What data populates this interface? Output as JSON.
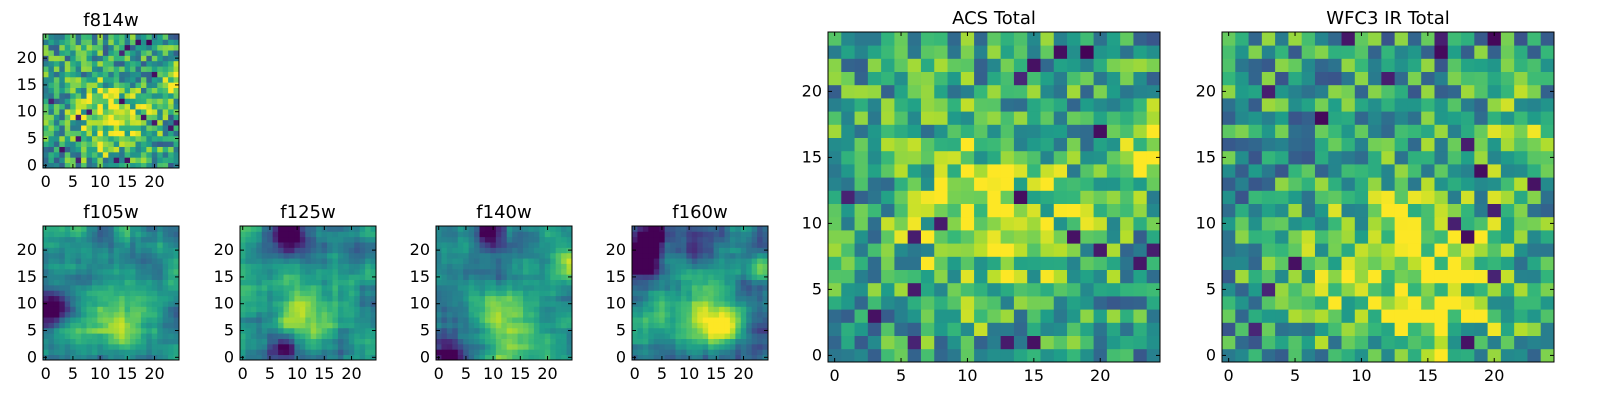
{
  "chart_data": [
    {
      "type": "heatmap",
      "title": "f814w",
      "grid_size": 25,
      "xticks": [
        0,
        5,
        10,
        15,
        20
      ],
      "yticks": [
        0,
        5,
        10,
        15,
        20
      ],
      "xlim": [
        0,
        24
      ],
      "ylim": [
        0,
        24
      ],
      "pattern": "noisy",
      "hotspots": [
        {
          "x": 12,
          "y": 9,
          "amp": 0.35,
          "sigma": 5
        },
        {
          "x": 24,
          "y": 16,
          "amp": 0.3,
          "sigma": 2
        }
      ],
      "seed": 11
    },
    {
      "type": "heatmap",
      "title": "f105w",
      "grid_size": 25,
      "xticks": [
        0,
        5,
        10,
        15,
        20
      ],
      "yticks": [
        0,
        5,
        10,
        15,
        20
      ],
      "xlim": [
        0,
        24
      ],
      "ylim": [
        0,
        24
      ],
      "pattern": "smooth",
      "hotspots": [
        {
          "x": 12,
          "y": 7,
          "amp": 0.4,
          "sigma": 5
        },
        {
          "x": 24,
          "y": 16,
          "amp": 0.35,
          "sigma": 2
        },
        {
          "x": 1,
          "y": 9,
          "amp": -0.6,
          "sigma": 2
        }
      ],
      "seed": 23
    },
    {
      "type": "heatmap",
      "title": "f125w",
      "grid_size": 25,
      "xticks": [
        0,
        5,
        10,
        15,
        20
      ],
      "yticks": [
        0,
        5,
        10,
        15,
        20
      ],
      "xlim": [
        0,
        24
      ],
      "ylim": [
        0,
        24
      ],
      "pattern": "smooth",
      "hotspots": [
        {
          "x": 12,
          "y": 8,
          "amp": 0.45,
          "sigma": 4
        },
        {
          "x": 24,
          "y": 17,
          "amp": 0.35,
          "sigma": 2
        },
        {
          "x": 8,
          "y": 2,
          "amp": -0.5,
          "sigma": 1.5
        },
        {
          "x": 9,
          "y": 23,
          "amp": -0.5,
          "sigma": 2
        }
      ],
      "seed": 37
    },
    {
      "type": "heatmap",
      "title": "f140w",
      "grid_size": 25,
      "xticks": [
        0,
        5,
        10,
        15,
        20
      ],
      "yticks": [
        0,
        5,
        10,
        15,
        20
      ],
      "xlim": [
        0,
        24
      ],
      "ylim": [
        0,
        24
      ],
      "pattern": "smooth",
      "hotspots": [
        {
          "x": 13,
          "y": 7,
          "amp": 0.5,
          "sigma": 4
        },
        {
          "x": 24,
          "y": 17,
          "amp": 0.4,
          "sigma": 2
        },
        {
          "x": 2,
          "y": 0,
          "amp": -0.6,
          "sigma": 2
        },
        {
          "x": 9,
          "y": 23,
          "amp": -0.5,
          "sigma": 2
        }
      ],
      "seed": 41
    },
    {
      "type": "heatmap",
      "title": "f160w",
      "grid_size": 25,
      "xticks": [
        0,
        5,
        10,
        15,
        20
      ],
      "yticks": [
        0,
        5,
        10,
        15,
        20
      ],
      "xlim": [
        0,
        24
      ],
      "ylim": [
        0,
        24
      ],
      "pattern": "smooth",
      "hotspots": [
        {
          "x": 14,
          "y": 7,
          "amp": 0.55,
          "sigma": 4
        },
        {
          "x": 24,
          "y": 17,
          "amp": 0.4,
          "sigma": 2
        },
        {
          "x": 1,
          "y": 18,
          "amp": -0.7,
          "sigma": 3
        },
        {
          "x": 4,
          "y": 23,
          "amp": -0.6,
          "sigma": 2
        }
      ],
      "seed": 53
    },
    {
      "type": "heatmap",
      "title": "ACS Total",
      "grid_size": 25,
      "xticks": [
        0,
        5,
        10,
        15,
        20
      ],
      "yticks": [
        0,
        5,
        10,
        15,
        20
      ],
      "xlim": [
        0,
        24
      ],
      "ylim": [
        0,
        24
      ],
      "pattern": "noisy",
      "hotspots": [
        {
          "x": 12,
          "y": 11,
          "amp": 0.35,
          "sigma": 5
        },
        {
          "x": 24,
          "y": 16,
          "amp": 0.3,
          "sigma": 2
        }
      ],
      "seed": 11
    },
    {
      "type": "heatmap",
      "title": "WFC3 IR Total",
      "grid_size": 25,
      "xticks": [
        0,
        5,
        10,
        15,
        20
      ],
      "yticks": [
        0,
        5,
        10,
        15,
        20
      ],
      "xlim": [
        0,
        24
      ],
      "ylim": [
        0,
        24
      ],
      "pattern": "noisy",
      "hotspots": [
        {
          "x": 14,
          "y": 6,
          "amp": 0.4,
          "sigma": 5
        },
        {
          "x": 22,
          "y": 17,
          "amp": 0.3,
          "sigma": 2
        }
      ],
      "seed": 67
    }
  ],
  "colormap": [
    "#440154",
    "#482878",
    "#3e4989",
    "#31688e",
    "#26828e",
    "#1f9e89",
    "#35b779",
    "#6ece58",
    "#b5de2b",
    "#fde725"
  ]
}
